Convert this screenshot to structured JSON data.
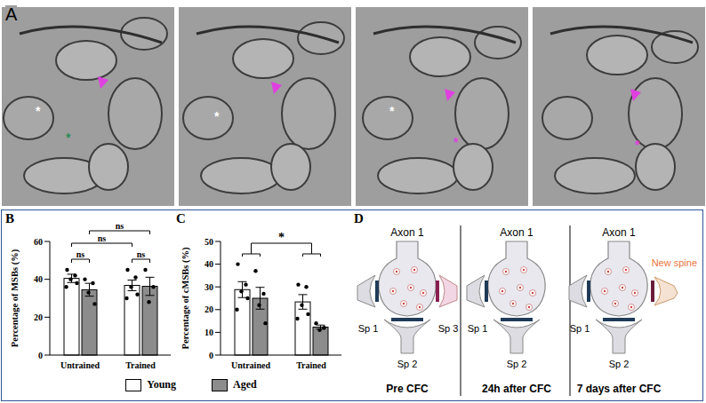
{
  "panel_labels": [
    "A",
    "B",
    "C",
    "D"
  ],
  "em_images": [
    {
      "markers": [
        {
          "text": "*",
          "color": "#ffffff"
        },
        {
          "text": "*",
          "color": "#2e8b57"
        }
      ]
    },
    {
      "markers": [
        {
          "text": "*",
          "color": "#ffffff"
        }
      ]
    },
    {
      "markers": [
        {
          "text": "*",
          "color": "#ffffff"
        },
        {
          "text": "*",
          "color": "#e040e0"
        }
      ]
    },
    {
      "markers": [
        {
          "text": "*",
          "color": "#e040e0"
        }
      ]
    }
  ],
  "chart_data": [
    {
      "type": "bar",
      "y_label": "Percentage of MSBs (%)",
      "categories": [
        "Untrained",
        "Trained"
      ],
      "ylim": [
        0,
        60
      ],
      "yticks": [
        0,
        20,
        40,
        60
      ],
      "legend": "bottom",
      "series": [
        {
          "name": "Young",
          "color": "#ffffff",
          "values": [
            40.5,
            36.8
          ],
          "errors": [
            2.2,
            2.8
          ],
          "points": [
            [
              45,
              42,
              40,
              38,
              36
            ],
            [
              45,
              41,
              36,
              32,
              30
            ]
          ]
        },
        {
          "name": "Aged",
          "color": "#8c8c8c",
          "values": [
            34.5,
            36.3
          ],
          "errors": [
            3.4,
            4.8
          ],
          "points": [
            [
              40,
              38,
              33,
              27
            ],
            [
              45,
              36,
              28
            ]
          ]
        }
      ],
      "comparisons": [
        {
          "a": {
            "category": "Untrained",
            "series": "Aged"
          },
          "b": {
            "category": "Trained",
            "series": "Aged"
          },
          "label": "ns"
        },
        {
          "a": {
            "category": "Untrained",
            "series": "Young"
          },
          "b": {
            "category": "Trained",
            "series": "Young"
          },
          "label": "ns"
        },
        {
          "a": {
            "category": "Untrained",
            "series": "Young"
          },
          "b": {
            "category": "Untrained",
            "series": "Aged"
          },
          "label": "ns"
        },
        {
          "a": {
            "category": "Trained",
            "series": "Young"
          },
          "b": {
            "category": "Trained",
            "series": "Aged"
          },
          "label": "ns"
        }
      ]
    },
    {
      "type": "bar",
      "y_label": "Percentage of cMSBs (%)",
      "categories": [
        "Untrained",
        "Trained"
      ],
      "ylim": [
        0,
        50
      ],
      "yticks": [
        0,
        10,
        20,
        30,
        40,
        50
      ],
      "series": [
        {
          "name": "Young",
          "color": "#ffffff",
          "values": [
            28.8,
            23.4
          ],
          "errors": [
            3.5,
            3.2
          ],
          "points": [
            [
              40,
              31,
              28,
              25,
              20
            ],
            [
              31,
              30,
              22,
              18,
              16
            ]
          ]
        },
        {
          "name": "Aged",
          "color": "#8c8c8c",
          "values": [
            25,
            12.3
          ],
          "errors": [
            4.8,
            0.9
          ],
          "points": [
            [
              37,
              27,
              22,
              14
            ],
            [
              14,
              12,
              11
            ]
          ]
        }
      ],
      "comparisons": [
        {
          "a": {
            "category": "Untrained"
          },
          "b": {
            "category": "Trained"
          },
          "label": "*"
        }
      ]
    }
  ],
  "diagram": {
    "stages": [
      {
        "title": "Pre CFC",
        "axon": "Axon 1",
        "spines": [
          "Sp 1",
          "Sp 2",
          "Sp 3"
        ]
      },
      {
        "title": "24h after CFC",
        "axon": "Axon 1",
        "spines": [
          "Sp 1",
          "Sp 2"
        ]
      },
      {
        "title": "7 days after CFC",
        "axon": "Axon 1",
        "spines": [
          "Sp 1",
          "Sp 2"
        ],
        "new_spine": "New spine"
      }
    ]
  }
}
